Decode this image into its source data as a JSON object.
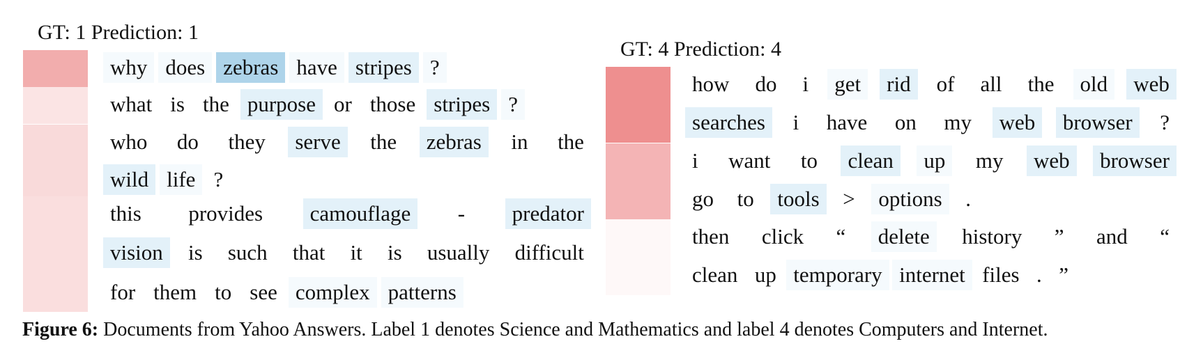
{
  "colors": {
    "token_high": "#aed4ea",
    "token_low": "#e3f1f9",
    "token_faint": "#f5fafd"
  },
  "left": {
    "header": "GT: 1 Prediction: 1",
    "sentence_weights": [
      0.55,
      0.18,
      0.25,
      0.22
    ],
    "lines": [
      {
        "sent": 0,
        "tokens": [
          [
            "why",
            1
          ],
          [
            "does",
            1
          ],
          [
            "zebras",
            3
          ],
          [
            "have",
            1
          ],
          [
            "stripes",
            2
          ],
          [
            "?",
            1
          ]
        ]
      },
      {
        "sent": 1,
        "tokens": [
          [
            "what",
            0
          ],
          [
            "is",
            0
          ],
          [
            "the",
            0
          ],
          [
            "purpose",
            2
          ],
          [
            "or",
            0
          ],
          [
            "those",
            0
          ],
          [
            "stripes",
            2
          ],
          [
            "?",
            1
          ]
        ]
      },
      {
        "sent": 2,
        "tokens": [
          [
            "who",
            0
          ],
          [
            "do",
            0
          ],
          [
            "they",
            0
          ],
          [
            "serve",
            2
          ],
          [
            "the",
            0
          ],
          [
            "zebras",
            2
          ],
          [
            "in",
            0
          ],
          [
            "the",
            0
          ]
        ]
      },
      {
        "sent": 2,
        "tokens": [
          [
            "wild",
            2
          ],
          [
            "life",
            1
          ],
          [
            "?",
            0
          ]
        ]
      },
      {
        "sent": 3,
        "tokens": [
          [
            "this",
            0
          ],
          [
            "provides",
            0
          ],
          [
            "camouflage",
            2
          ],
          [
            "-",
            0
          ],
          [
            "predator",
            2
          ]
        ]
      },
      {
        "sent": 3,
        "tokens": [
          [
            "vision",
            2
          ],
          [
            "is",
            0
          ],
          [
            "such",
            0
          ],
          [
            "that",
            0
          ],
          [
            "it",
            0
          ],
          [
            "is",
            0
          ],
          [
            "usually",
            0
          ],
          [
            "difficult",
            0
          ]
        ]
      },
      {
        "sent": 3,
        "tokens": [
          [
            "for",
            0
          ],
          [
            "them",
            0
          ],
          [
            "to",
            0
          ],
          [
            "see",
            0
          ],
          [
            "complex",
            1
          ],
          [
            "patterns",
            1
          ]
        ]
      }
    ]
  },
  "right": {
    "header": "GT: 4 Prediction: 4",
    "sentence_weights": [
      0.75,
      0.5,
      0.05
    ],
    "lines": [
      {
        "sent": 0,
        "tokens": [
          [
            "how",
            0
          ],
          [
            "do",
            0
          ],
          [
            "i",
            0
          ],
          [
            "get",
            1
          ],
          [
            "rid",
            2
          ],
          [
            "of",
            0
          ],
          [
            "all",
            0
          ],
          [
            "the",
            0
          ],
          [
            "old",
            1
          ],
          [
            "web",
            2
          ]
        ]
      },
      {
        "sent": 0,
        "tokens": [
          [
            "searches",
            2
          ],
          [
            "i",
            0
          ],
          [
            "have",
            0
          ],
          [
            "on",
            0
          ],
          [
            "my",
            0
          ],
          [
            "web",
            2
          ],
          [
            "browser",
            2
          ],
          [
            "?",
            0
          ]
        ]
      },
      {
        "sent": 1,
        "tokens": [
          [
            "i",
            0
          ],
          [
            "want",
            0
          ],
          [
            "to",
            0
          ],
          [
            "clean",
            2
          ],
          [
            "up",
            1
          ],
          [
            "my",
            0
          ],
          [
            "web",
            2
          ],
          [
            "browser",
            2
          ]
        ]
      },
      {
        "sent": 1,
        "tokens": [
          [
            "go",
            0
          ],
          [
            "to",
            0
          ],
          [
            "tools",
            2
          ],
          [
            ">",
            0
          ],
          [
            "options",
            1
          ],
          [
            ".",
            0
          ]
        ]
      },
      {
        "sent": 2,
        "tokens": [
          [
            "then",
            0
          ],
          [
            "click",
            0
          ],
          [
            "“",
            0
          ],
          [
            "delete",
            1
          ],
          [
            "history",
            0
          ],
          [
            "”",
            0
          ],
          [
            "and",
            0
          ],
          [
            "“",
            0
          ]
        ]
      },
      {
        "sent": 2,
        "tokens": [
          [
            "clean",
            0
          ],
          [
            "up",
            0
          ],
          [
            "temporary",
            1
          ],
          [
            "internet",
            1
          ],
          [
            "files",
            0
          ],
          [
            ".",
            0
          ],
          [
            "”",
            0
          ]
        ]
      }
    ]
  },
  "caption": {
    "label": "Figure 6:",
    "text": " Documents from Yahoo Answers. Label 1 denotes Science and Mathematics and label 4 denotes Computers and Internet."
  }
}
